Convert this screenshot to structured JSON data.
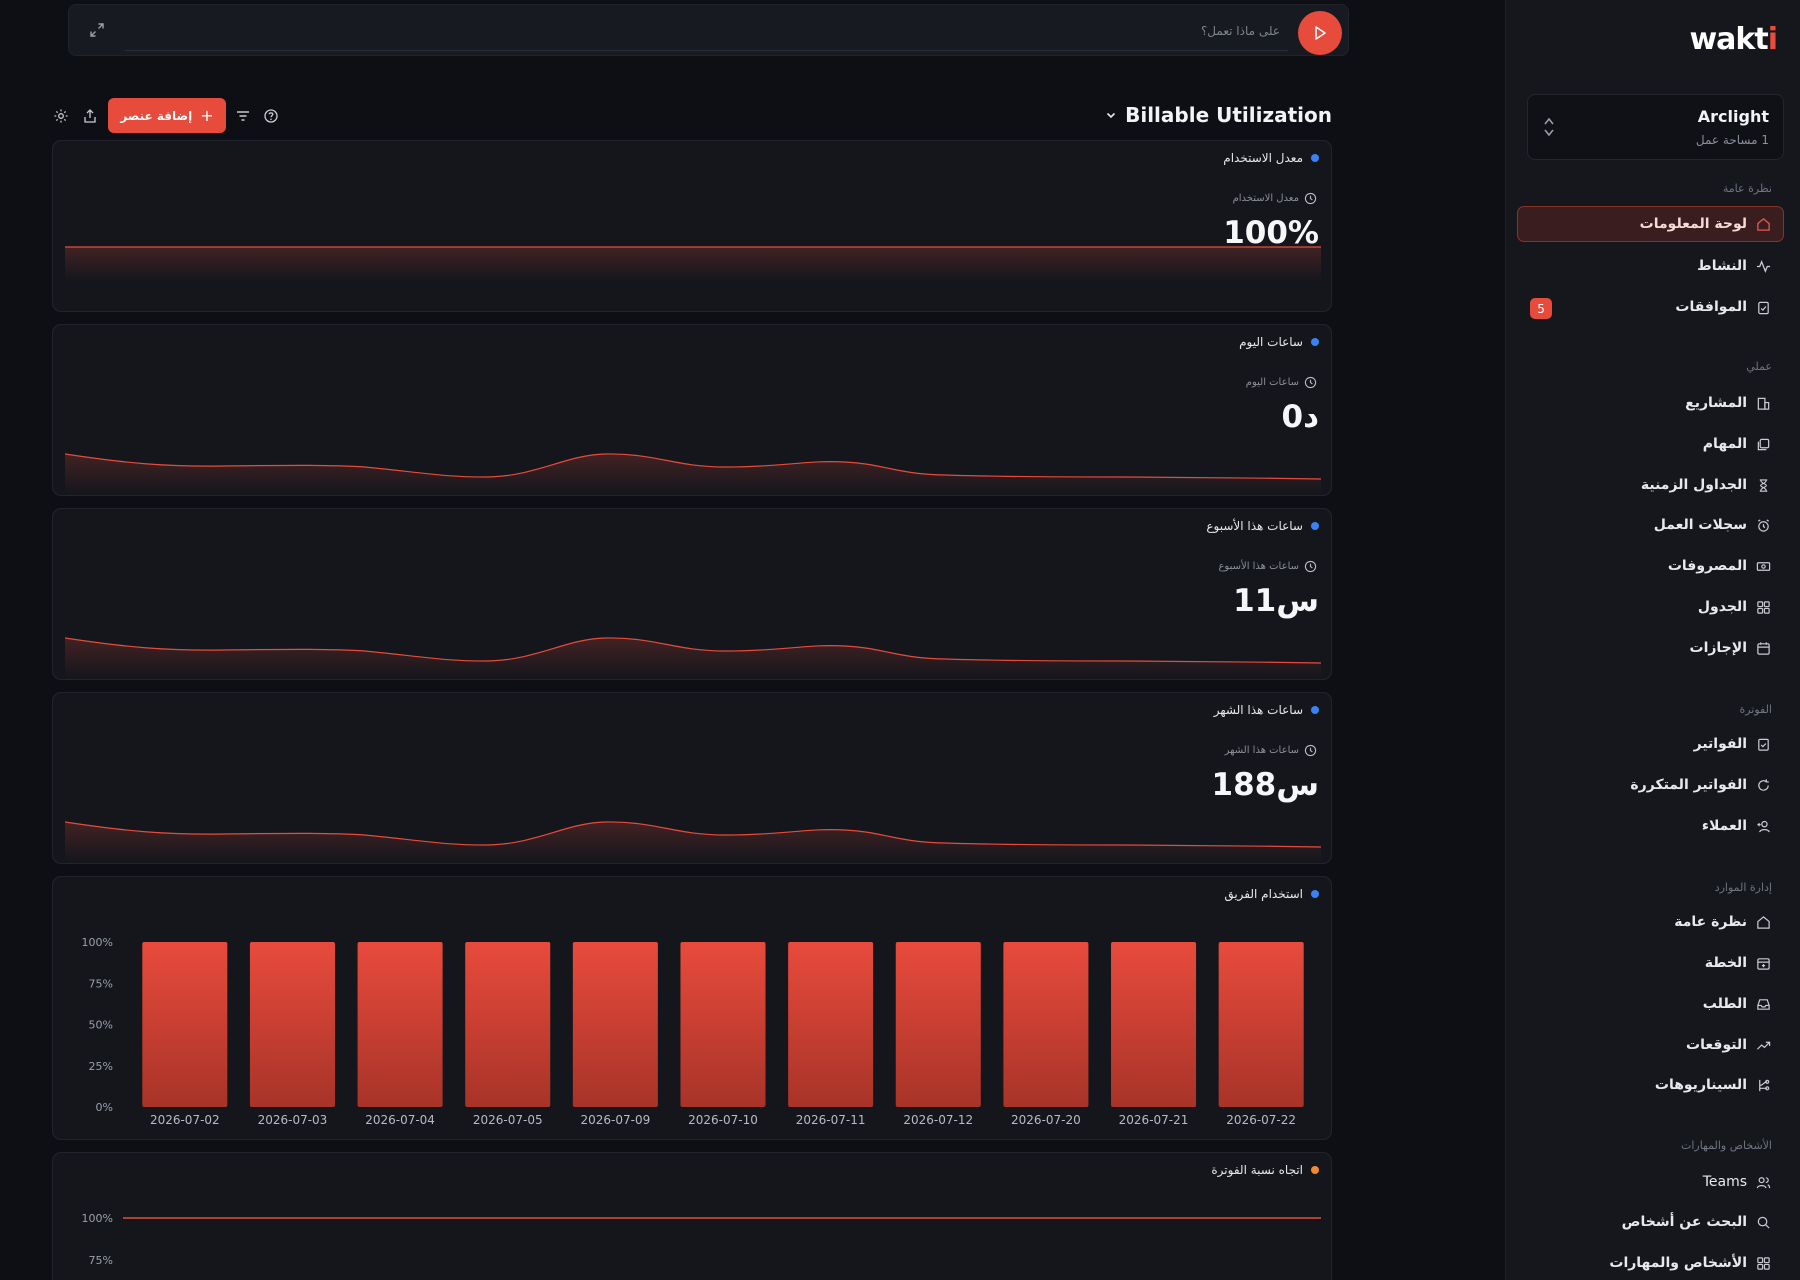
{
  "colors": {
    "accent": "#e64b3c",
    "blue_dot": "#3b82f6",
    "orange_dot": "#f08a2c",
    "background": "#0d0f14"
  },
  "prompt": {
    "placeholder": "على ماذا تعمل؟",
    "expand_icon": "expand-icon",
    "send_icon": "play-icon"
  },
  "toolbar": {
    "title": "Billable Utilization",
    "add_label": "إضافة عنصر",
    "icons": [
      "settings-icon",
      "share-icon",
      "filter-icon",
      "help-icon"
    ]
  },
  "sidebar": {
    "logo_main": "wakt",
    "logo_accent": "i",
    "workspace": {
      "name": "Arclight",
      "sub": "1 مساحة عمل"
    },
    "sections": {
      "overview": "نظرة عامة",
      "work": "عملي",
      "billing": "الفوترة",
      "resources": "إدارة الموارد",
      "people": "الأشخاص والمهارات"
    },
    "items": [
      {
        "label": "لوحة المعلومات",
        "icon": "home-icon",
        "active": true
      },
      {
        "label": "النشاط",
        "icon": "activity-icon"
      },
      {
        "label": "الموافقات",
        "icon": "clipboard-check-icon",
        "badge": "5"
      },
      {
        "label": "المشاريع",
        "icon": "building-icon"
      },
      {
        "label": "المهام",
        "icon": "tasks-icon"
      },
      {
        "label": "الجداول الزمنية",
        "icon": "hourglass-icon"
      },
      {
        "label": "سجلات العمل",
        "icon": "alarm-clock-icon"
      },
      {
        "label": "المصروفات",
        "icon": "banknote-icon"
      },
      {
        "label": "الجدول",
        "icon": "grid-icon"
      },
      {
        "label": "الإجازات",
        "icon": "calendar-icon"
      },
      {
        "label": "الفواتير",
        "icon": "invoice-icon"
      },
      {
        "label": "الفواتير المتكررة",
        "icon": "refresh-icon"
      },
      {
        "label": "العملاء",
        "icon": "user-plus-icon"
      },
      {
        "label": "نظرة عامة",
        "icon": "home-icon"
      },
      {
        "label": "الخطة",
        "icon": "calendar-plus-icon"
      },
      {
        "label": "الطلب",
        "icon": "inbox-icon"
      },
      {
        "label": "التوقعات",
        "icon": "trending-up-icon"
      },
      {
        "label": "السيناريوهات",
        "icon": "git-branch-icon"
      },
      {
        "label": "Teams",
        "icon": "users-icon"
      },
      {
        "label": "البحث عن أشخاص",
        "icon": "search-icon"
      },
      {
        "label": "الأشخاص والمهارات",
        "icon": "grid-icon"
      }
    ]
  },
  "widgets": [
    {
      "title": "معدل الاستخدام",
      "metric_label": "معدل الاستخدام",
      "value": "100%"
    },
    {
      "title": "ساعات اليوم",
      "metric_label": "ساعات اليوم",
      "value": "0د"
    },
    {
      "title": "ساعات هذا الأسبوع",
      "metric_label": "ساعات هذا الأسبوع",
      "value": "11س"
    },
    {
      "title": "ساعات هذا الشهر",
      "metric_label": "ساعات هذا الشهر",
      "value": "188س"
    },
    {
      "title": "استخدام الفريق"
    },
    {
      "title": "اتجاه نسبة الفوترة"
    }
  ],
  "chart_data": [
    {
      "type": "bar",
      "title": "استخدام الفريق",
      "categories": [
        "2026-07-02",
        "2026-07-03",
        "2026-07-04",
        "2026-07-05",
        "2026-07-09",
        "2026-07-10",
        "2026-07-11",
        "2026-07-12",
        "2026-07-20",
        "2026-07-21",
        "2026-07-22"
      ],
      "values": [
        100,
        100,
        100,
        100,
        100,
        100,
        100,
        100,
        100,
        100,
        100
      ],
      "yticks": [
        "0%",
        "25%",
        "50%",
        "75%",
        "100%"
      ],
      "ylim": [
        0,
        100
      ]
    },
    {
      "type": "line",
      "title": "اتجاه نسبة الفوترة",
      "yticks": [
        "75%",
        "100%"
      ],
      "values": [
        100,
        100
      ],
      "ylim": [
        75,
        100
      ]
    }
  ]
}
